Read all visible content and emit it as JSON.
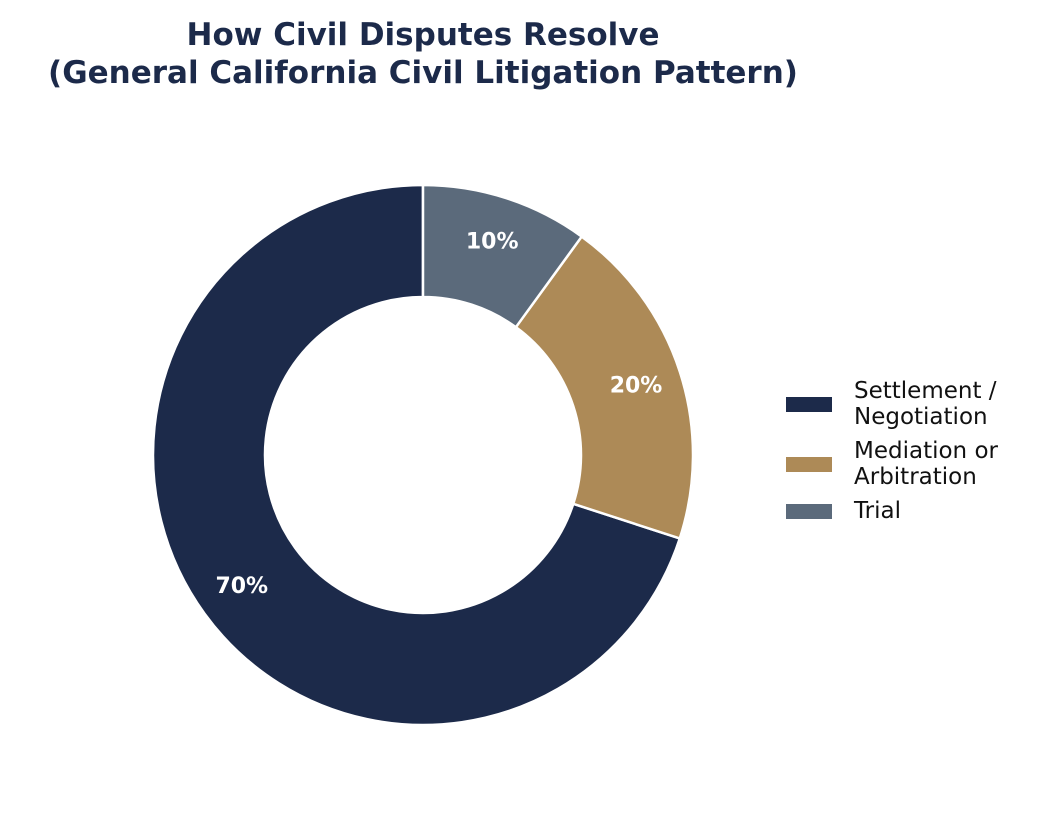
{
  "chart_data": {
    "type": "pie",
    "style": "donut",
    "title_lines": [
      "How Civil Disputes Resolve",
      "(General California Civil Litigation Pattern)"
    ],
    "slices": [
      {
        "label": "Settlement /\nNegotiation",
        "value": 70,
        "value_label": "70%",
        "color": "#1c2a4a"
      },
      {
        "label": "Mediation or\nArbitration",
        "value": 20,
        "value_label": "20%",
        "color": "#ad8a57"
      },
      {
        "label": "Trial",
        "value": 10,
        "value_label": "10%",
        "color": "#5b6a7b"
      }
    ],
    "start_angle_deg": 90,
    "direction": "counterclockwise",
    "legend_position": "right",
    "edge_color": "#ffffff"
  }
}
